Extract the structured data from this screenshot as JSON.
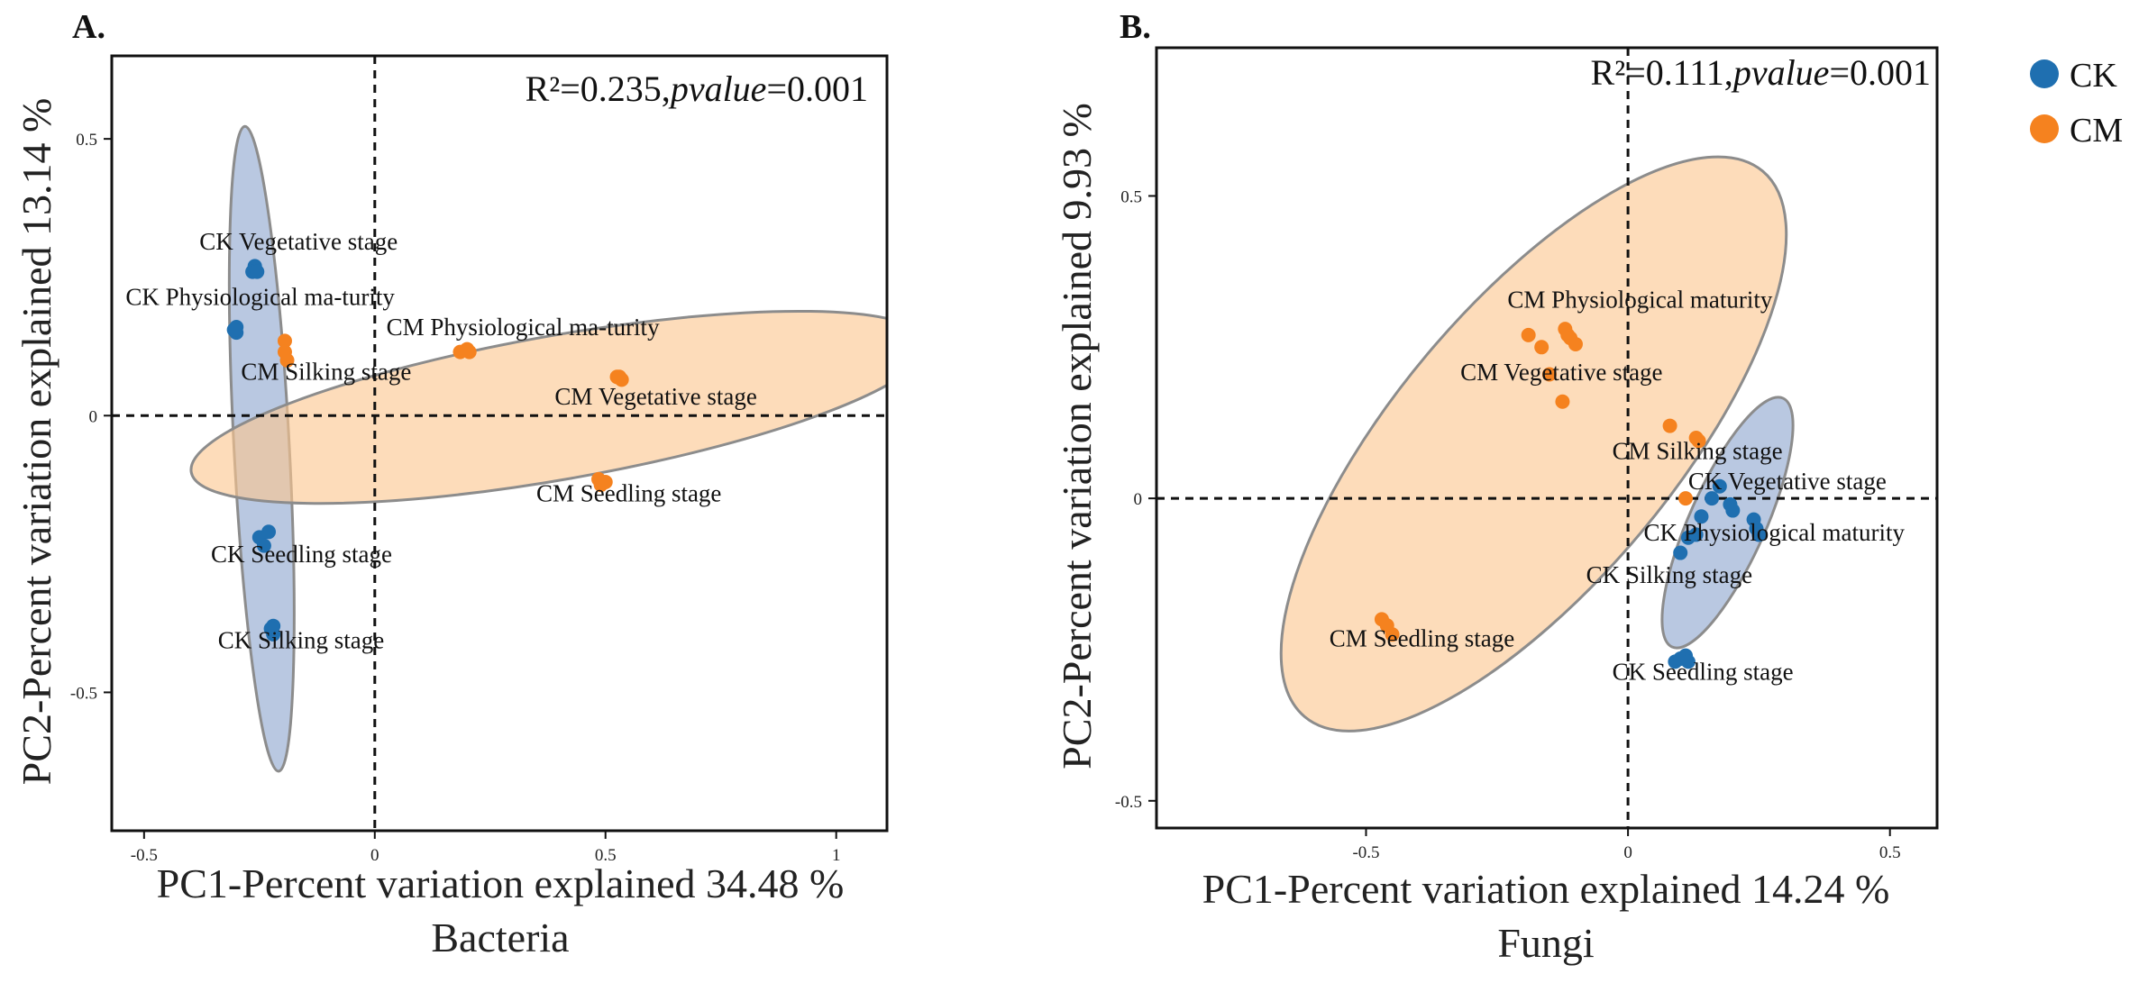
{
  "legend": {
    "items": [
      {
        "label": "CK",
        "color": "#1f6fb0"
      },
      {
        "label": "CM",
        "color": "#f5821f"
      }
    ]
  },
  "chart_data": [
    {
      "type": "scatter",
      "panel": "A.",
      "subtitle": "Bacteria",
      "xlabel": "PC1-Percent variation explained 34.48 %",
      "ylabel": "PC2-Percent variation explained 13.14 %",
      "stat_text": {
        "r2": "R²=0.235,",
        "p_label": "pvalue",
        "p_value": "=0.001"
      },
      "xlim": [
        -0.57,
        1.11
      ],
      "ylim": [
        -0.75,
        0.65
      ],
      "xticks": [
        -0.5,
        0,
        0.5,
        1
      ],
      "xtick_labels": [
        "-0.5",
        "0",
        "0.5",
        "1"
      ],
      "yticks": [
        -0.5,
        0,
        0.5
      ],
      "ytick_labels": [
        "-0.5",
        "0",
        "0.5"
      ],
      "ellipses": [
        {
          "group": "CK",
          "cx": -0.245,
          "cy": -0.06,
          "rx": 0.7,
          "ry": 0.05,
          "angle_deg": 87
        },
        {
          "group": "CM",
          "cx": 0.4,
          "cy": 0.015,
          "rx": 0.81,
          "ry": 0.13,
          "angle_deg": -10
        }
      ],
      "series": [
        {
          "name": "CK",
          "points": [
            {
              "x": -0.26,
              "y": 0.27
            },
            {
              "x": -0.265,
              "y": 0.26
            },
            {
              "x": -0.255,
              "y": 0.26
            },
            {
              "x": -0.3,
              "y": 0.16
            },
            {
              "x": -0.3,
              "y": 0.15
            },
            {
              "x": -0.305,
              "y": 0.155
            },
            {
              "x": -0.25,
              "y": -0.22
            },
            {
              "x": -0.24,
              "y": -0.235
            },
            {
              "x": -0.23,
              "y": -0.21
            },
            {
              "x": -0.22,
              "y": -0.38
            },
            {
              "x": -0.22,
              "y": -0.395
            },
            {
              "x": -0.225,
              "y": -0.385
            }
          ]
        },
        {
          "name": "CM",
          "points": [
            {
              "x": -0.195,
              "y": 0.135
            },
            {
              "x": -0.195,
              "y": 0.115
            },
            {
              "x": -0.19,
              "y": 0.1
            },
            {
              "x": 0.185,
              "y": 0.115
            },
            {
              "x": 0.2,
              "y": 0.12
            },
            {
              "x": 0.205,
              "y": 0.115
            },
            {
              "x": 0.525,
              "y": 0.07
            },
            {
              "x": 0.535,
              "y": 0.065
            },
            {
              "x": 0.53,
              "y": 0.07
            },
            {
              "x": 0.485,
              "y": -0.115
            },
            {
              "x": 0.5,
              "y": -0.12
            },
            {
              "x": 0.49,
              "y": -0.125
            }
          ]
        }
      ],
      "labels": [
        {
          "text": "CK Vegetative stage",
          "x": -0.38,
          "y": 0.3
        },
        {
          "text": "CK Physiological ma-turity",
          "x": -0.54,
          "y": 0.2
        },
        {
          "text": "CM Physiological ma-turity",
          "x": 0.025,
          "y": 0.145
        },
        {
          "text": "CM Silking stage",
          "x": -0.29,
          "y": 0.065
        },
        {
          "text": "CM Vegetative stage",
          "x": 0.39,
          "y": 0.02
        },
        {
          "text": "CM Seedling stage",
          "x": 0.35,
          "y": -0.155
        },
        {
          "text": "CK Seedling stage",
          "x": -0.355,
          "y": -0.265
        },
        {
          "text": "CK Silking stage",
          "x": -0.34,
          "y": -0.42
        }
      ]
    },
    {
      "type": "scatter",
      "panel": "B.",
      "subtitle": "Fungi",
      "xlabel": "PC1-Percent variation explained 14.24 %",
      "ylabel": "PC2-Percent variation explained 9.93 %",
      "stat_text": {
        "r2": "R²=0.111,",
        "p_label": "pvalue",
        "p_value": "=0.001"
      },
      "xlim": [
        -0.9,
        0.59
      ],
      "ylim": [
        -0.545,
        0.745
      ],
      "xticks": [
        -0.5,
        0,
        0.5
      ],
      "xtick_labels": [
        "-0.5",
        "0",
        "0.5"
      ],
      "yticks": [
        -0.5,
        0,
        0.5
      ],
      "ytick_labels": [
        "-0.5",
        "0",
        "0.5"
      ],
      "ellipses": [
        {
          "group": "CK",
          "cx": 0.19,
          "cy": -0.04,
          "rx": 0.26,
          "ry": 0.063,
          "angle_deg": -66
        },
        {
          "group": "CM",
          "cx": -0.18,
          "cy": 0.09,
          "rx": 0.68,
          "ry": 0.23,
          "angle_deg": -50
        }
      ],
      "series": [
        {
          "name": "CK",
          "points": [
            {
              "x": 0.16,
              "y": 0.0
            },
            {
              "x": 0.175,
              "y": 0.02
            },
            {
              "x": 0.195,
              "y": -0.01
            },
            {
              "x": 0.2,
              "y": -0.02
            },
            {
              "x": 0.14,
              "y": -0.03
            },
            {
              "x": 0.24,
              "y": -0.035
            },
            {
              "x": 0.245,
              "y": -0.05
            },
            {
              "x": 0.25,
              "y": -0.06
            },
            {
              "x": 0.13,
              "y": -0.06
            },
            {
              "x": 0.115,
              "y": -0.065
            },
            {
              "x": 0.1,
              "y": -0.09
            },
            {
              "x": 0.09,
              "y": -0.27
            },
            {
              "x": 0.1,
              "y": -0.265
            },
            {
              "x": 0.11,
              "y": -0.26
            },
            {
              "x": 0.115,
              "y": -0.27
            }
          ]
        },
        {
          "name": "CM",
          "points": [
            {
              "x": -0.19,
              "y": 0.27
            },
            {
              "x": -0.12,
              "y": 0.28
            },
            {
              "x": -0.115,
              "y": 0.27
            },
            {
              "x": -0.165,
              "y": 0.25
            },
            {
              "x": -0.1,
              "y": 0.255
            },
            {
              "x": -0.11,
              "y": 0.265
            },
            {
              "x": -0.15,
              "y": 0.205
            },
            {
              "x": -0.125,
              "y": 0.16
            },
            {
              "x": 0.08,
              "y": 0.12
            },
            {
              "x": 0.13,
              "y": 0.1
            },
            {
              "x": 0.135,
              "y": 0.095
            },
            {
              "x": 0.11,
              "y": 0.0
            },
            {
              "x": -0.47,
              "y": -0.2
            },
            {
              "x": -0.46,
              "y": -0.21
            },
            {
              "x": -0.45,
              "y": -0.225
            }
          ]
        }
      ],
      "labels": [
        {
          "text": "CM Physiological maturity",
          "x": -0.23,
          "y": 0.315
        },
        {
          "text": "CM Vegetative stage",
          "x": -0.32,
          "y": 0.195
        },
        {
          "text": "CM Silking stage",
          "x": -0.03,
          "y": 0.065
        },
        {
          "text": "CK Vegetative stage",
          "x": 0.115,
          "y": 0.015
        },
        {
          "text": "CK Physiological maturity",
          "x": 0.03,
          "y": -0.07
        },
        {
          "text": "CK Silking stage",
          "x": -0.08,
          "y": -0.14
        },
        {
          "text": "CM Seedling stage",
          "x": -0.57,
          "y": -0.245
        },
        {
          "text": "CK Seedling stage",
          "x": -0.03,
          "y": -0.3
        }
      ]
    }
  ]
}
